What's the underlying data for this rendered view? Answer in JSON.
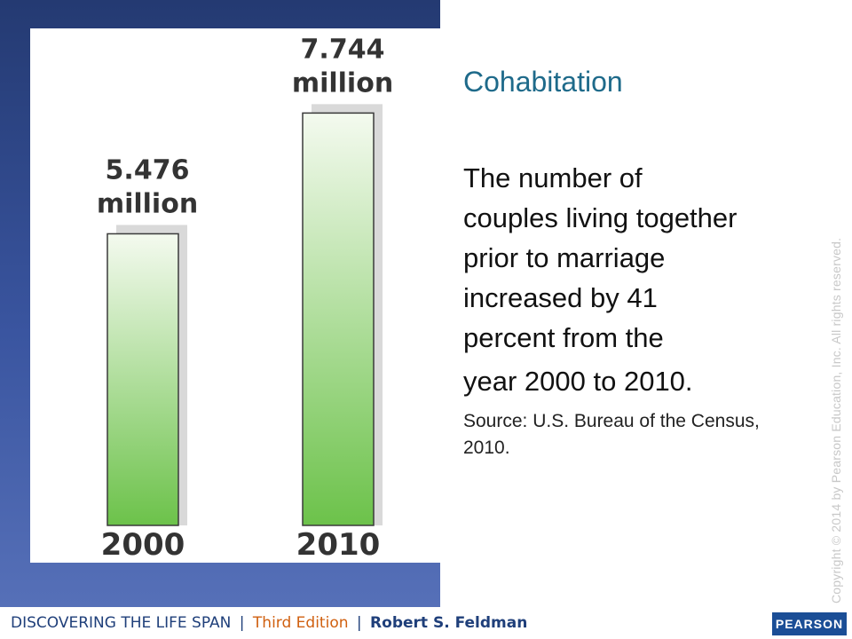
{
  "slide": {
    "title": "Cohabitation",
    "body_lines": [
      "The number of",
      "couples living together",
      "prior to marriage",
      "increased by 41",
      "percent from the"
    ],
    "body_tail": "year 2000 to 2010.",
    "source": "Source: U.S. Bureau of the Census, 2010.",
    "copyright": "Copyright © 2014 by Pearson Education, Inc. All rights reserved."
  },
  "footer": {
    "book_title": "DISCOVERING THE LIFE SPAN",
    "separator": "|",
    "edition": "Third Edition",
    "author": "Robert S. Feldman",
    "logo_text": "PEARSON"
  },
  "colors": {
    "bar_top": "#f4faef",
    "bar_bottom": "#6cc24a",
    "title": "#1e6a8a",
    "panel": "#2c4484"
  },
  "chart_data": {
    "type": "bar",
    "categories": [
      "2000",
      "2010"
    ],
    "values": [
      5.476,
      7.744
    ],
    "value_labels": [
      [
        "5.476",
        "million"
      ],
      [
        "7.744",
        "million"
      ]
    ],
    "title": "",
    "xlabel": "",
    "ylabel": "",
    "ylim": [
      0,
      9
    ]
  }
}
